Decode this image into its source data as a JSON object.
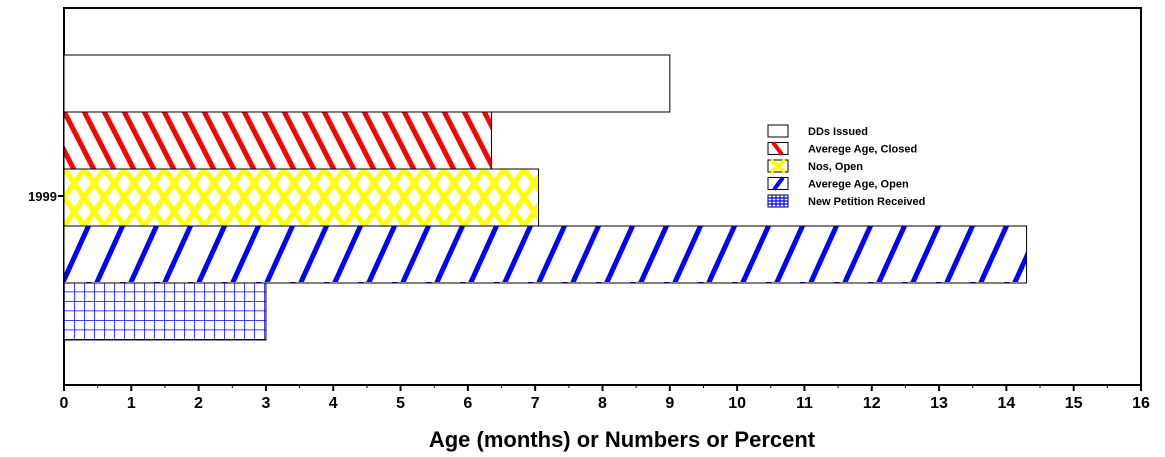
{
  "chart_data": {
    "type": "bar",
    "orientation": "horizontal",
    "categories": [
      "1999"
    ],
    "series": [
      {
        "name": "DDs Issued",
        "values": [
          9.0
        ],
        "color": "#ffffff",
        "pattern": "none"
      },
      {
        "name": "Averege Age, Closed",
        "values": [
          6.35
        ],
        "color": "#ff0000",
        "pattern": "diag-down"
      },
      {
        "name": "Nos, Open",
        "values": [
          7.05
        ],
        "color": "#ffff00",
        "pattern": "crosshatch"
      },
      {
        "name": "Averege Age, Open",
        "values": [
          14.3
        ],
        "color": "#0000ff",
        "pattern": "diag-up"
      },
      {
        "name": "New Petition Received",
        "values": [
          3.0
        ],
        "color": "#0000ff",
        "pattern": "grid"
      }
    ],
    "xlabel": "Age (months) or Numbers or Percent",
    "ylabel": "",
    "title": "",
    "xlim": [
      0,
      16
    ],
    "xticks": [
      0,
      1,
      2,
      3,
      4,
      5,
      6,
      7,
      8,
      9,
      10,
      11,
      12,
      13,
      14,
      15,
      16
    ],
    "grid": false,
    "legend_position": "right"
  }
}
